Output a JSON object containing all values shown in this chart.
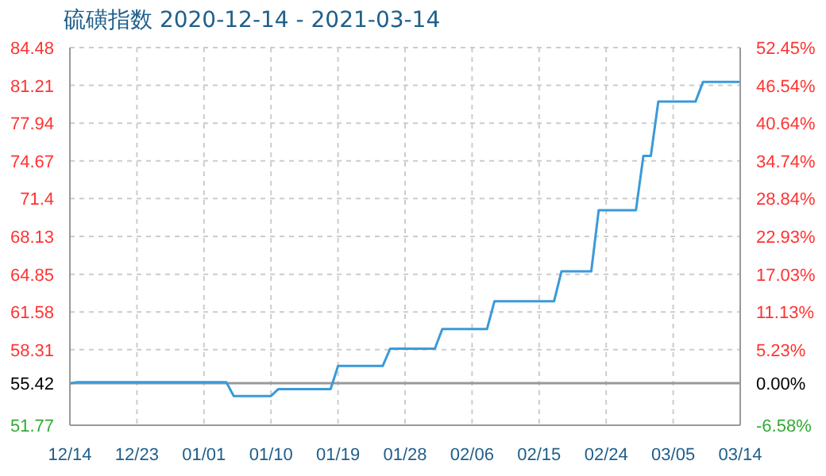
{
  "chart_data": {
    "type": "line",
    "title": "硫磺指数 2020-12-14 - 2021-03-14",
    "x": [
      "2020-12-14",
      "2020-12-15",
      "2021-01-04",
      "2021-01-05",
      "2021-01-10",
      "2021-01-11",
      "2021-01-18",
      "2021-01-19",
      "2021-01-25",
      "2021-01-26",
      "2021-02-01",
      "2021-02-02",
      "2021-02-08",
      "2021-02-09",
      "2021-02-17",
      "2021-02-18",
      "2021-02-22",
      "2021-02-23",
      "2021-02-28",
      "2021-03-01",
      "2021-03-02",
      "2021-03-03",
      "2021-03-08",
      "2021-03-09",
      "2021-03-14"
    ],
    "series": [
      {
        "color": "#3a9ad9",
        "values": [
          55.4,
          55.5,
          55.5,
          54.3,
          54.3,
          54.9,
          54.9,
          56.9,
          56.9,
          58.4,
          58.4,
          60.1,
          60.1,
          62.5,
          62.5,
          65.1,
          65.1,
          70.4,
          70.4,
          75.1,
          75.1,
          79.8,
          79.8,
          81.5,
          81.5
        ]
      }
    ],
    "xlim": [
      "2020-12-14",
      "2021-03-14"
    ],
    "xticks": [
      {
        "value": "2020-12-14",
        "label": "12/14"
      },
      {
        "value": "2020-12-23",
        "label": "12/23"
      },
      {
        "value": "2021-01-01",
        "label": "01/01"
      },
      {
        "value": "2021-01-10",
        "label": "01/10"
      },
      {
        "value": "2021-01-19",
        "label": "01/19"
      },
      {
        "value": "2021-01-28",
        "label": "01/28"
      },
      {
        "value": "2021-02-06",
        "label": "02/06"
      },
      {
        "value": "2021-02-15",
        "label": "02/15"
      },
      {
        "value": "2021-02-24",
        "label": "02/24"
      },
      {
        "value": "2021-03-05",
        "label": "03/05"
      },
      {
        "value": "2021-03-14",
        "label": "03/14"
      }
    ],
    "ylim": [
      51.77,
      84.48
    ],
    "yticks": [
      51.77,
      55.42,
      58.31,
      61.58,
      64.85,
      68.13,
      71.4,
      74.67,
      77.94,
      81.21,
      84.48
    ],
    "y2lim": [
      -6.58,
      52.45
    ],
    "y2ticks": [
      {
        "value": -6.58,
        "label": "-6.58%"
      },
      {
        "value": 0,
        "label": "0.00%"
      },
      {
        "value": 5.23,
        "label": "5.23%"
      },
      {
        "value": 11.13,
        "label": "11.13%"
      },
      {
        "value": 17.03,
        "label": "17.03%"
      },
      {
        "value": 22.93,
        "label": "22.93%"
      },
      {
        "value": 28.84,
        "label": "28.84%"
      },
      {
        "value": 34.74,
        "label": "34.74%"
      },
      {
        "value": 40.64,
        "label": "40.64%"
      },
      {
        "value": 46.54,
        "label": "46.54%"
      },
      {
        "value": 52.45,
        "label": "52.45%"
      }
    ],
    "ref_lines": [
      {
        "axis": "y",
        "value": 55.42,
        "color": "#999999"
      }
    ],
    "grid": true,
    "marker": "none",
    "line_style": "solid"
  }
}
